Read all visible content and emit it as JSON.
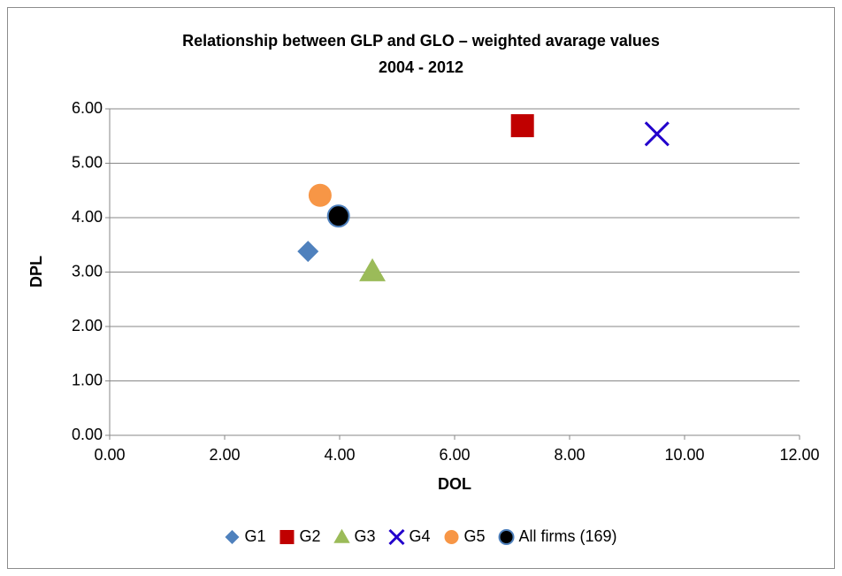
{
  "chart_data": {
    "type": "scatter",
    "title": "Relationship between GLP and GLO – weighted avarage values",
    "subtitle": "2004 - 2012",
    "x_label": "DOL",
    "y_label": "DPL",
    "xlim": [
      0,
      12
    ],
    "xticks": [
      {
        "value": 0,
        "label": "0.00"
      },
      {
        "value": 2,
        "label": "2.00"
      },
      {
        "value": 4,
        "label": "4.00"
      },
      {
        "value": 6,
        "label": "6.00"
      },
      {
        "value": 8,
        "label": "8.00"
      },
      {
        "value": 10,
        "label": "10.00"
      },
      {
        "value": 12,
        "label": "12.00"
      }
    ],
    "ylim": [
      0,
      6
    ],
    "yticks": [
      {
        "value": 0,
        "label": "0.00"
      },
      {
        "value": 1,
        "label": "1.00"
      },
      {
        "value": 2,
        "label": "2.00"
      },
      {
        "value": 3,
        "label": "3.00"
      },
      {
        "value": 4,
        "label": "4.00"
      },
      {
        "value": 5,
        "label": "5.00"
      },
      {
        "value": 6,
        "label": "6.00"
      }
    ],
    "grid": true,
    "legend": "bottom",
    "series": [
      {
        "name": "G1",
        "color": "#4f81bd",
        "marker": "diamond",
        "x": [
          3.45
        ],
        "values": [
          3.38
        ]
      },
      {
        "name": "G2",
        "color": "#c00000",
        "marker": "square",
        "x": [
          7.18
        ],
        "values": [
          5.69
        ]
      },
      {
        "name": "G3",
        "color": "#9bbb59",
        "marker": "triangle",
        "x": [
          4.57
        ],
        "values": [
          3.01
        ]
      },
      {
        "name": "G4",
        "color": "#2200cc",
        "marker": "x",
        "x": [
          9.52
        ],
        "values": [
          5.54
        ]
      },
      {
        "name": "G5",
        "color": "#f79646",
        "marker": "circle",
        "x": [
          3.66
        ],
        "values": [
          4.41
        ]
      },
      {
        "name": "All firms (169)",
        "color": "#000000",
        "marker": "circle-outline",
        "x": [
          3.98
        ],
        "values": [
          4.03
        ]
      }
    ]
  }
}
